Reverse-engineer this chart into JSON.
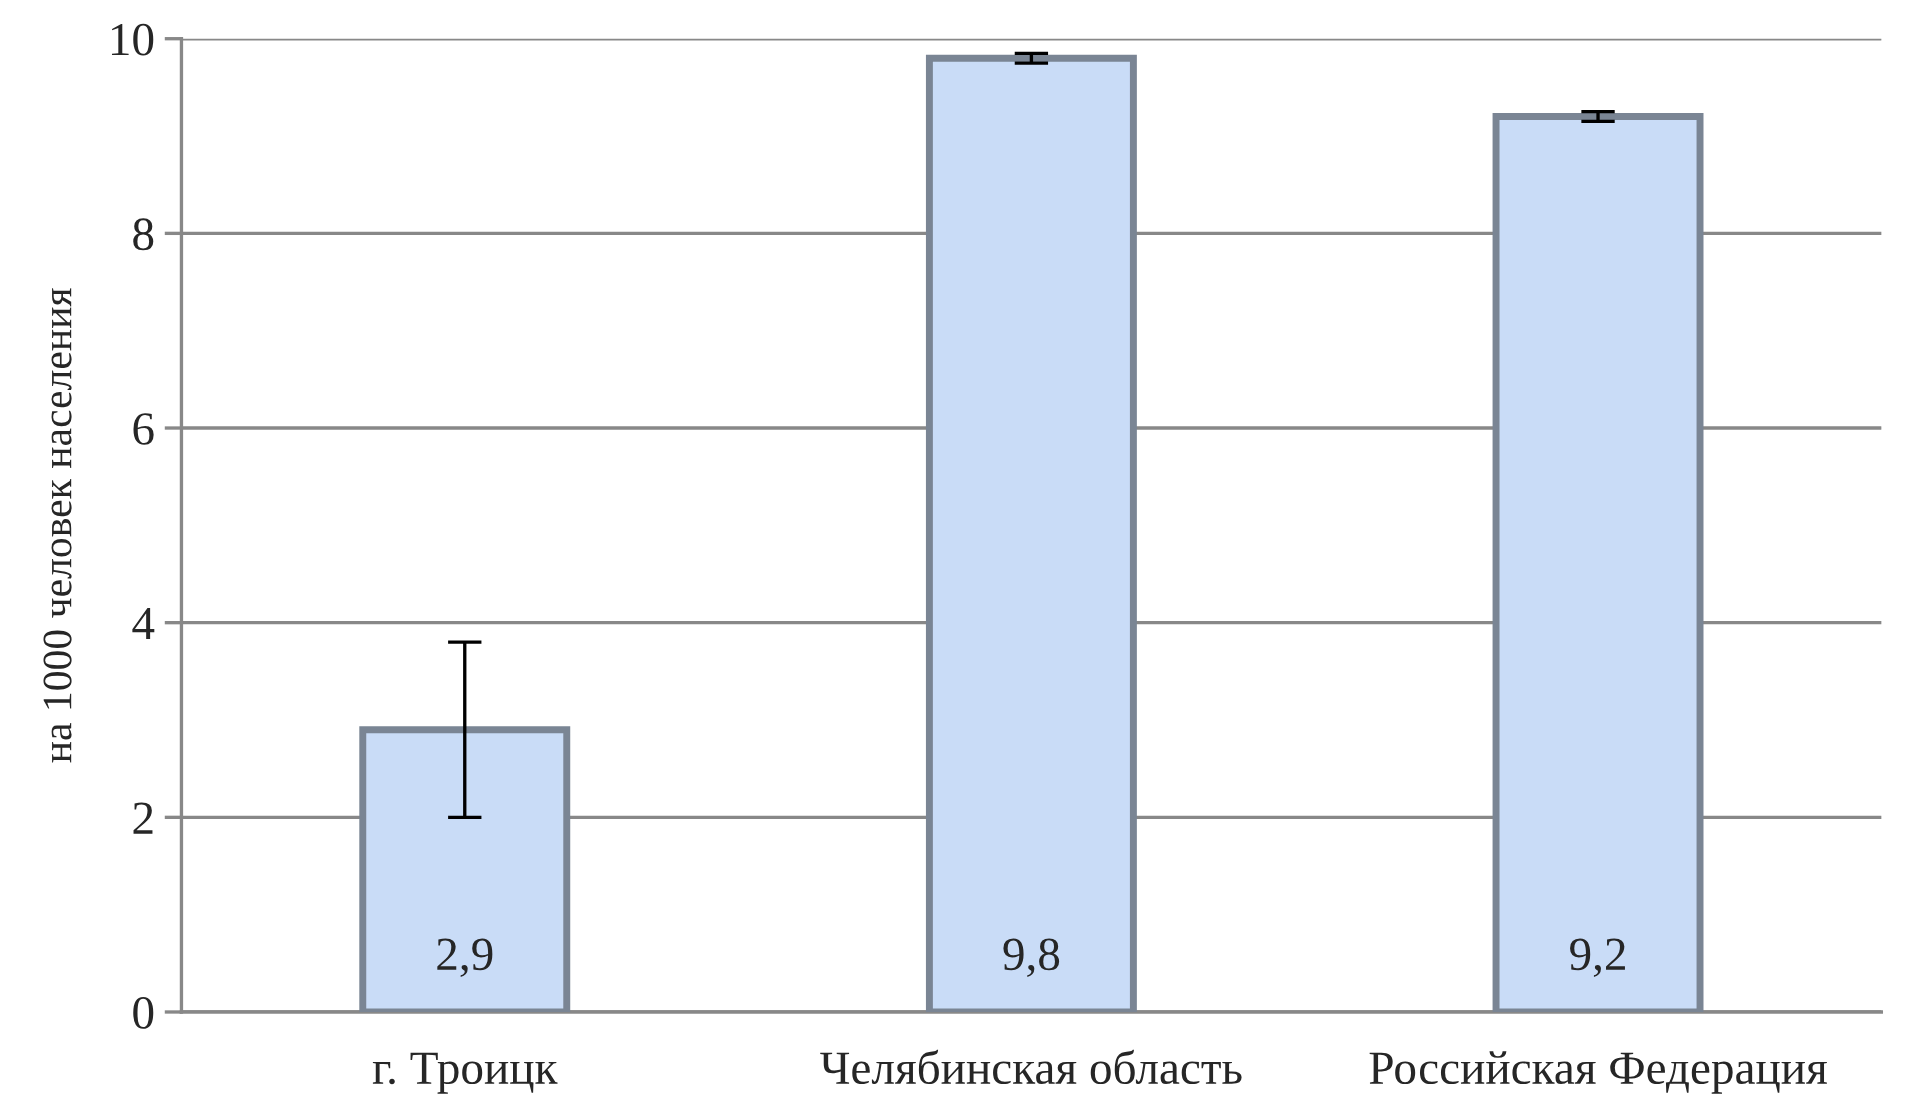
{
  "chart_data": {
    "type": "bar",
    "ylabel": "на 1000 человек населения",
    "categories": [
      "г. Троицк",
      "Челябинская область",
      "Российская Федерация"
    ],
    "values": [
      2.9,
      9.8,
      9.2
    ],
    "value_labels": [
      "2,9",
      "9,8",
      "9,2"
    ],
    "errors": [
      [
        2.0,
        3.8
      ],
      [
        9.75,
        9.85
      ],
      [
        9.15,
        9.25
      ]
    ],
    "color": "#c9dcf7",
    "ylim": [
      0,
      10
    ],
    "yticks": [
      0,
      2,
      4,
      6,
      8,
      10
    ],
    "grid": "y",
    "legend": false
  }
}
